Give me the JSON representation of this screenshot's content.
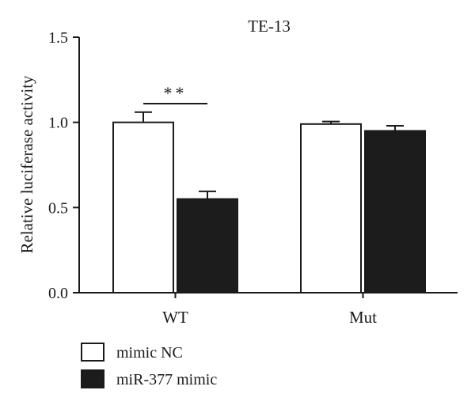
{
  "chart_data": {
    "type": "bar",
    "title": "TE-13",
    "xlabel": "",
    "ylabel": "Relative luciferase activity",
    "ylim": [
      0,
      1.5
    ],
    "yticks": [
      0.0,
      0.5,
      1.0,
      1.5
    ],
    "ytick_labels": [
      "0.0",
      "0.5",
      "1.0",
      "1.5"
    ],
    "categories": [
      "WT",
      "Mut"
    ],
    "series": [
      {
        "name": "mimic NC",
        "color": "#ffffff",
        "values": [
          1.0,
          0.99
        ],
        "errors": [
          0.06,
          0.015
        ]
      },
      {
        "name": "miR-377 mimic",
        "color": "#1c1c1c",
        "values": [
          0.55,
          0.95
        ],
        "errors": [
          0.045,
          0.03
        ]
      }
    ],
    "annotations": [
      {
        "text": "**",
        "category": "WT"
      }
    ],
    "legend_position": "bottom-left",
    "grid": false
  }
}
